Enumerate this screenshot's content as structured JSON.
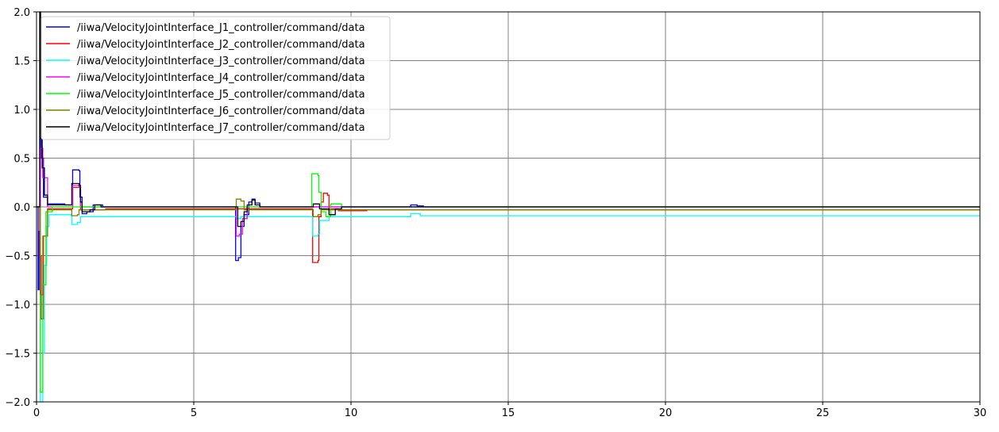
{
  "chart_data": {
    "type": "line",
    "title": "",
    "xlabel": "",
    "ylabel": "",
    "xlim": [
      0,
      30
    ],
    "ylim": [
      -2.0,
      2.0
    ],
    "grid": true,
    "legend_position": "top-left",
    "x_ticks": [
      "0",
      "5",
      "10",
      "15",
      "20",
      "25",
      "30"
    ],
    "y_ticks": [
      "2.0",
      "1.5",
      "1.0",
      "0.5",
      "0.0",
      "−0.5",
      "−1.0",
      "−1.5",
      "−2.0"
    ],
    "series": [
      {
        "name": "/iiwa/VelocityJointInterface_J1_controller/command/data",
        "color": "#0000ff",
        "points": [
          [
            0,
            0
          ],
          [
            0.05,
            -0.85
          ],
          [
            0.08,
            -0.25
          ],
          [
            0.12,
            0.92
          ],
          [
            0.16,
            0.5
          ],
          [
            0.22,
            0.1
          ],
          [
            0.35,
            0.03
          ],
          [
            0.6,
            0.03
          ],
          [
            0.9,
            0.02
          ],
          [
            1.12,
            0.02
          ],
          [
            1.15,
            0.38
          ],
          [
            1.35,
            0.37
          ],
          [
            1.38,
            0.1
          ],
          [
            1.45,
            -0.07
          ],
          [
            1.6,
            -0.05
          ],
          [
            1.8,
            0.02
          ],
          [
            1.95,
            0.02
          ],
          [
            2.1,
            0.0
          ],
          [
            6.3,
            0.0
          ],
          [
            6.33,
            -0.55
          ],
          [
            6.42,
            -0.52
          ],
          [
            6.5,
            -0.2
          ],
          [
            6.6,
            -0.08
          ],
          [
            6.75,
            0.05
          ],
          [
            6.85,
            0.08
          ],
          [
            6.95,
            0.04
          ],
          [
            7.1,
            0.0
          ],
          [
            11.85,
            0.0
          ],
          [
            11.9,
            0.02
          ],
          [
            12.1,
            0.01
          ],
          [
            12.3,
            0.0
          ],
          [
            30,
            0.0
          ]
        ]
      },
      {
        "name": "/iiwa/VelocityJointInterface_J2_controller/command/data",
        "color": "#ff0000",
        "points": [
          [
            0,
            0
          ],
          [
            0.1,
            -0.5
          ],
          [
            0.15,
            -1.15
          ],
          [
            0.22,
            -0.3
          ],
          [
            0.35,
            -0.02
          ],
          [
            1.12,
            -0.02
          ],
          [
            1.15,
            0.2
          ],
          [
            1.35,
            0.2
          ],
          [
            1.4,
            -0.03
          ],
          [
            2.2,
            -0.02
          ],
          [
            8.75,
            -0.02
          ],
          [
            8.78,
            -0.57
          ],
          [
            8.95,
            -0.55
          ],
          [
            8.98,
            -0.1
          ],
          [
            9.05,
            0.05
          ],
          [
            9.12,
            0.14
          ],
          [
            9.25,
            0.12
          ],
          [
            9.3,
            -0.02
          ],
          [
            9.6,
            -0.04
          ],
          [
            10.5,
            -0.03
          ],
          [
            30,
            -0.03
          ]
        ]
      },
      {
        "name": "/iiwa/VelocityJointInterface_J3_controller/command/data",
        "color": "#00ffff",
        "points": [
          [
            0,
            0
          ],
          [
            0.12,
            -2.0
          ],
          [
            0.2,
            -1.5
          ],
          [
            0.25,
            -0.6
          ],
          [
            0.32,
            -0.2
          ],
          [
            0.4,
            -0.08
          ],
          [
            1.1,
            -0.09
          ],
          [
            1.12,
            -0.18
          ],
          [
            1.3,
            -0.16
          ],
          [
            1.4,
            -0.1
          ],
          [
            6.3,
            -0.1
          ],
          [
            6.35,
            -0.12
          ],
          [
            6.5,
            -0.1
          ],
          [
            8.75,
            -0.1
          ],
          [
            8.78,
            -0.3
          ],
          [
            8.95,
            -0.28
          ],
          [
            9.0,
            -0.14
          ],
          [
            9.3,
            -0.1
          ],
          [
            11.85,
            -0.1
          ],
          [
            11.9,
            -0.07
          ],
          [
            12.2,
            -0.09
          ],
          [
            30,
            -0.09
          ]
        ]
      },
      {
        "name": "/iiwa/VelocityJointInterface_J4_controller/command/data",
        "color": "#ff00ff",
        "points": [
          [
            0,
            0
          ],
          [
            0.12,
            0.6
          ],
          [
            0.2,
            0.3
          ],
          [
            0.35,
            0.0
          ],
          [
            1.12,
            0.0
          ],
          [
            1.15,
            0.22
          ],
          [
            1.35,
            0.21
          ],
          [
            1.4,
            0.0
          ],
          [
            6.3,
            0.0
          ],
          [
            6.35,
            -0.3
          ],
          [
            6.45,
            -0.28
          ],
          [
            6.55,
            -0.12
          ],
          [
            6.7,
            0.0
          ],
          [
            30,
            0.0
          ]
        ]
      },
      {
        "name": "/iiwa/VelocityJointInterface_J5_controller/command/data",
        "color": "#00ff00",
        "points": [
          [
            0,
            0
          ],
          [
            0.12,
            -1.9
          ],
          [
            0.2,
            -0.8
          ],
          [
            0.3,
            -0.05
          ],
          [
            0.5,
            0.0
          ],
          [
            8.72,
            0.0
          ],
          [
            8.75,
            0.34
          ],
          [
            8.95,
            0.32
          ],
          [
            8.98,
            0.15
          ],
          [
            9.05,
            -0.05
          ],
          [
            9.2,
            -0.1
          ],
          [
            9.35,
            0.03
          ],
          [
            9.5,
            0.03
          ],
          [
            9.7,
            0.0
          ],
          [
            30,
            0.0
          ]
        ]
      },
      {
        "name": "/iiwa/VelocityJointInterface_J6_controller/command/data",
        "color": "#808000",
        "points": [
          [
            0,
            0
          ],
          [
            0.12,
            -0.9
          ],
          [
            0.2,
            -0.3
          ],
          [
            0.35,
            -0.03
          ],
          [
            1.1,
            -0.03
          ],
          [
            1.12,
            -0.09
          ],
          [
            1.3,
            -0.08
          ],
          [
            1.35,
            -0.03
          ],
          [
            6.3,
            -0.03
          ],
          [
            6.35,
            0.08
          ],
          [
            6.5,
            0.06
          ],
          [
            6.6,
            -0.03
          ],
          [
            8.75,
            -0.03
          ],
          [
            8.8,
            -0.1
          ],
          [
            8.95,
            -0.08
          ],
          [
            9.05,
            -0.03
          ],
          [
            30,
            -0.03
          ]
        ]
      },
      {
        "name": "/iiwa/VelocityJointInterface_J7_controller/command/data",
        "color": "#000000",
        "points": [
          [
            0,
            0
          ],
          [
            0.1,
            2.0
          ],
          [
            0.13,
            0.7
          ],
          [
            0.18,
            0.4
          ],
          [
            0.25,
            0.12
          ],
          [
            0.35,
            0.02
          ],
          [
            1.1,
            0.02
          ],
          [
            1.12,
            0.24
          ],
          [
            1.35,
            0.22
          ],
          [
            1.4,
            0.05
          ],
          [
            1.45,
            -0.05
          ],
          [
            1.7,
            -0.03
          ],
          [
            1.85,
            0.02
          ],
          [
            2.05,
            0.0
          ],
          [
            6.35,
            0.0
          ],
          [
            6.4,
            -0.2
          ],
          [
            6.5,
            -0.15
          ],
          [
            6.6,
            -0.05
          ],
          [
            6.7,
            0.02
          ],
          [
            6.85,
            0.07
          ],
          [
            6.95,
            0.02
          ],
          [
            7.1,
            0.0
          ],
          [
            8.75,
            0.0
          ],
          [
            8.8,
            0.03
          ],
          [
            9.0,
            -0.02
          ],
          [
            9.3,
            -0.08
          ],
          [
            9.5,
            -0.02
          ],
          [
            9.7,
            0.0
          ],
          [
            30,
            0.0
          ]
        ]
      }
    ]
  }
}
